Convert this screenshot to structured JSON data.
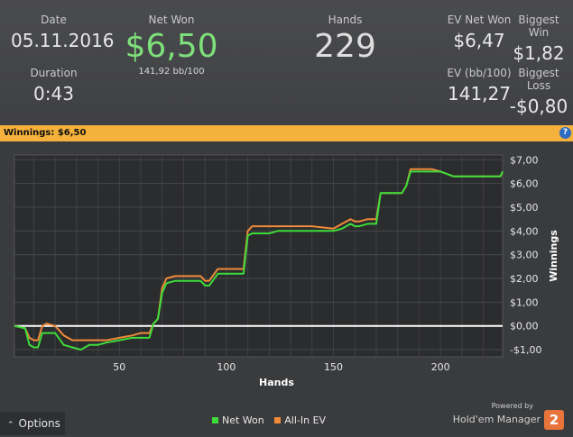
{
  "stats": {
    "date": {
      "label": "Date",
      "value": "05.11.2016"
    },
    "duration": {
      "label": "Duration",
      "value": "0:43"
    },
    "net_won": {
      "label": "Net Won",
      "value": "$6,50",
      "sub": "141,92 bb/100"
    },
    "hands": {
      "label": "Hands",
      "value": "229"
    },
    "ev_net_won": {
      "label": "EV Net Won",
      "value": "$6,47"
    },
    "biggest_win": {
      "label": "Biggest Win",
      "value": "$1,82"
    },
    "ev_bb100": {
      "label": "EV (bb/100)",
      "value": "141,27"
    },
    "biggest_loss": {
      "label": "Biggest Loss",
      "value": "-$0,80"
    }
  },
  "banner": {
    "title": "Winnings: $6,50",
    "help": "?"
  },
  "footer": {
    "options_label": "Options",
    "powered_by": "Powered by",
    "brand": "Hold'em Manager",
    "brand_logo": "2"
  },
  "colors": {
    "net_won": "#3ddc3a",
    "all_in_ev": "#ef8a3a",
    "accent": "#f4b13b"
  },
  "chart_data": {
    "type": "line",
    "xlabel": "Hands",
    "ylabel": "Winnings",
    "xlim": [
      1,
      229
    ],
    "ylim": [
      -1.3,
      7.2
    ],
    "xticks": [
      50,
      100,
      150,
      200
    ],
    "yticks": [
      -1,
      0,
      1,
      2,
      3,
      4,
      5,
      6,
      7
    ],
    "ytick_labels": [
      "-$1,00",
      "$0,00",
      "$1,00",
      "$2,00",
      "$3,00",
      "$4,00",
      "$5,00",
      "$6,00",
      "$7,00"
    ],
    "grid": true,
    "legend": "bottom-center",
    "series": [
      {
        "name": "Net Won",
        "x": [
          1,
          6,
          8,
          10,
          12,
          14,
          16,
          20,
          24,
          28,
          32,
          36,
          40,
          44,
          50,
          56,
          60,
          64,
          66,
          68,
          70,
          72,
          76,
          80,
          84,
          88,
          90,
          92,
          96,
          100,
          104,
          108,
          110,
          112,
          116,
          120,
          124,
          128,
          140,
          150,
          154,
          158,
          160,
          162,
          166,
          170,
          172,
          178,
          182,
          184,
          186,
          190,
          196,
          200,
          206,
          214,
          222,
          228,
          229
        ],
        "y": [
          0,
          -0.1,
          -0.8,
          -0.9,
          -0.9,
          -0.3,
          -0.3,
          -0.3,
          -0.8,
          -0.9,
          -1.0,
          -0.8,
          -0.8,
          -0.7,
          -0.6,
          -0.5,
          -0.5,
          -0.5,
          0.1,
          0.3,
          1.4,
          1.8,
          1.9,
          1.9,
          1.9,
          1.9,
          1.7,
          1.7,
          2.2,
          2.2,
          2.2,
          2.2,
          3.8,
          3.9,
          3.9,
          3.9,
          4.0,
          4.0,
          4.0,
          4.0,
          4.1,
          4.3,
          4.2,
          4.2,
          4.3,
          4.3,
          5.6,
          5.6,
          5.6,
          5.9,
          6.5,
          6.5,
          6.5,
          6.5,
          6.3,
          6.3,
          6.3,
          6.3,
          6.5
        ]
      },
      {
        "name": "All-In EV",
        "x": [
          1,
          6,
          8,
          10,
          12,
          14,
          16,
          20,
          24,
          28,
          32,
          36,
          40,
          44,
          50,
          56,
          60,
          64,
          66,
          68,
          70,
          72,
          76,
          80,
          84,
          88,
          90,
          92,
          96,
          100,
          104,
          108,
          110,
          112,
          116,
          120,
          124,
          128,
          140,
          150,
          154,
          158,
          160,
          162,
          166,
          170,
          172,
          178,
          182,
          184,
          186,
          190,
          196,
          200,
          206,
          214,
          222,
          228,
          229
        ],
        "y": [
          0,
          -0.1,
          -0.5,
          -0.6,
          -0.6,
          0.0,
          0.1,
          0.0,
          -0.4,
          -0.6,
          -0.6,
          -0.6,
          -0.6,
          -0.6,
          -0.5,
          -0.4,
          -0.3,
          -0.3,
          0.1,
          0.3,
          1.6,
          2.0,
          2.1,
          2.1,
          2.1,
          2.1,
          1.9,
          1.9,
          2.4,
          2.4,
          2.4,
          2.4,
          4.0,
          4.2,
          4.2,
          4.2,
          4.2,
          4.2,
          4.2,
          4.1,
          4.3,
          4.5,
          4.4,
          4.4,
          4.5,
          4.5,
          5.6,
          5.6,
          5.6,
          5.9,
          6.6,
          6.6,
          6.6,
          6.5,
          6.3,
          6.3,
          6.3,
          6.3,
          6.5
        ]
      }
    ]
  }
}
